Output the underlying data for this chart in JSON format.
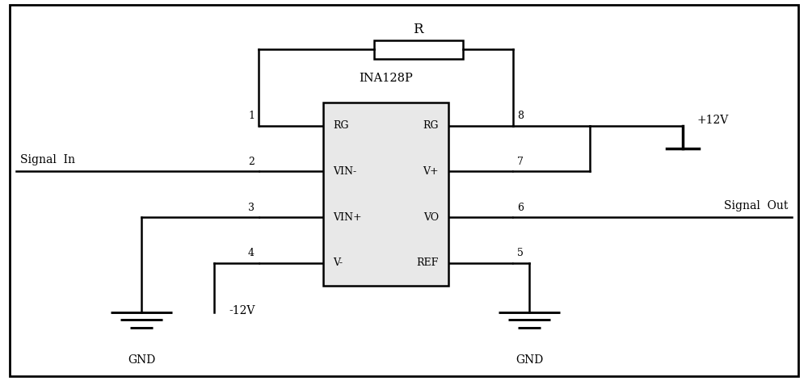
{
  "fig_width": 10.0,
  "fig_height": 4.72,
  "dpi": 100,
  "bg_color": "#ffffff",
  "line_color": "#000000",
  "line_width": 1.8,
  "chip_label": "INA128P",
  "left_labels": [
    "RG",
    "VIN-",
    "VIN+",
    "V-"
  ],
  "right_labels": [
    "RG",
    "V+",
    "VO",
    "REF"
  ],
  "pin_nums_left": [
    "1",
    "2",
    "3",
    "4"
  ],
  "pin_nums_right": [
    "8",
    "7",
    "6",
    "5"
  ],
  "resistor_label": "R",
  "signal_in_label": "Signal  In",
  "signal_out_label": "Signal  Out",
  "plus12v_label": "+12V",
  "minus12v_label": "-12V",
  "gnd_label": "GND"
}
